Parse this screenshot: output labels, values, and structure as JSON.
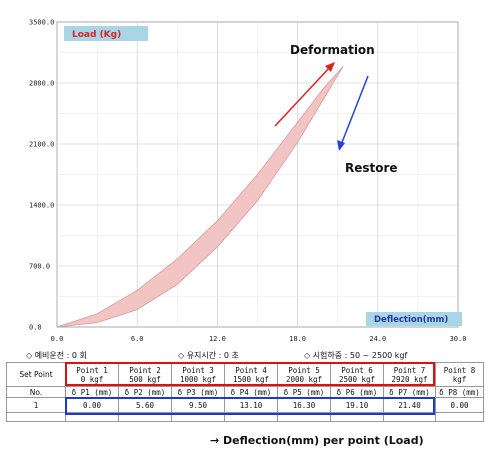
{
  "chart_data": {
    "type": "area",
    "ylabel": "Load (Kg)",
    "xlabel": "Deflection(mm)",
    "xlim": [
      0,
      30
    ],
    "ylim": [
      0,
      3500
    ],
    "x_ticks": [
      "0.0",
      "6.0",
      "12.0",
      "18.0",
      "24.0",
      "30.0"
    ],
    "y_ticks": [
      "0.0",
      "700.0",
      "1400.0",
      "2100.0",
      "2800.0",
      "3500.0"
    ],
    "grid": true,
    "series": [
      {
        "x": [
          0,
          3,
          6,
          9,
          12,
          15,
          18,
          20,
          21,
          21.4
        ],
        "y": [
          0,
          150,
          420,
          780,
          1220,
          1750,
          2350,
          2750,
          2920,
          2990
        ]
      },
      {
        "x": [
          21.4,
          20.5,
          18,
          15,
          12,
          9,
          6,
          3,
          0
        ],
        "y": [
          2990,
          2760,
          2120,
          1450,
          920,
          490,
          200,
          50,
          0
        ]
      }
    ],
    "annotations": [
      {
        "text": "Deformation",
        "color": "#e02020"
      },
      {
        "text": "Restore",
        "color": "#2244dd"
      }
    ],
    "colors": {
      "fill": "#f2c4c4",
      "edge": "#d99a9a",
      "deform_arrow": "#e02020",
      "restore_arrow": "#2244dd"
    }
  },
  "conditions": [
    "◇ 예비운전 : 0 회",
    "◇ 유지시간 : 0 초",
    "◇ 시험하중 : 50 ~ 2500 kgf"
  ],
  "table": {
    "col0_header": "Set Point",
    "points": [
      {
        "name": "Point 1",
        "load": "0 kgf"
      },
      {
        "name": "Point 2",
        "load": "500 kgf"
      },
      {
        "name": "Point 3",
        "load": "1000 kgf"
      },
      {
        "name": "Point 4",
        "load": "1500 kgf"
      },
      {
        "name": "Point 5",
        "load": "2000 kgf"
      },
      {
        "name": "Point 6",
        "load": "2500 kgf"
      },
      {
        "name": "Point 7",
        "load": "2920 kgf"
      },
      {
        "name": "Point 8",
        "load": "kgf"
      }
    ],
    "row2_label": "No.",
    "delta_headers": [
      "δ P1 (mm)",
      "δ P2 (mm)",
      "δ P3 (mm)",
      "δ P4 (mm)",
      "δ P5 (mm)",
      "δ P6 (mm)",
      "δ P7 (mm)",
      "δ P8 (mm)"
    ],
    "row3_label": "1",
    "values": [
      "0.00",
      "5.60",
      "9.50",
      "13.10",
      "16.30",
      "19.10",
      "21.40",
      "0.00"
    ]
  },
  "caption": "→ Deflection(mm) per point (Load)"
}
